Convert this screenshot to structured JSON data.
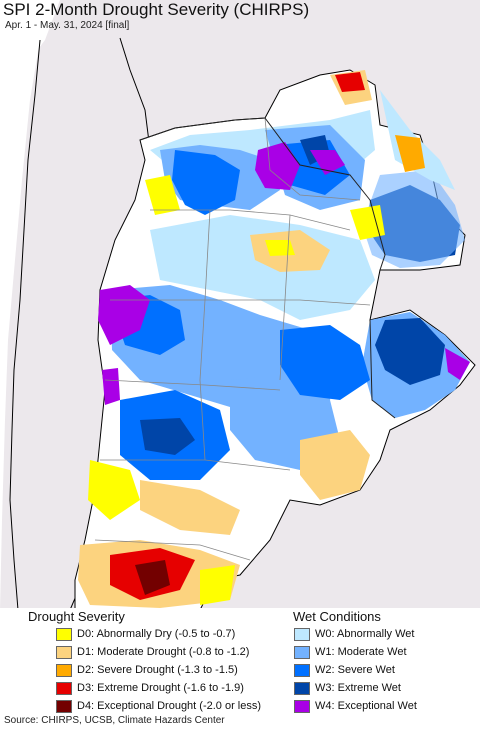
{
  "title": "SPI 2-Month Drought Severity (CHIRPS)",
  "subtitle": "Apr. 1 - May. 31, 2024 [final]",
  "legend": {
    "drought_heading": "Drought Severity",
    "wet_heading": "Wet Conditions",
    "drought_items": [
      {
        "label": "D0: Abnormally Dry (-0.5 to -0.7)",
        "color": "#ffff00"
      },
      {
        "label": "D1: Moderate Drought (-0.8 to -1.2)",
        "color": "#fcd37f"
      },
      {
        "label": "D2: Severe Drought (-1.3 to -1.5)",
        "color": "#ffaa00"
      },
      {
        "label": "D3: Extreme Drought (-1.6 to -1.9)",
        "color": "#e60000"
      },
      {
        "label": "D4: Exceptional Drought (-2.0 or less)",
        "color": "#730000"
      }
    ],
    "wet_items": [
      {
        "label": "W0: Abnormally Wet",
        "color": "#bee8ff"
      },
      {
        "label": "W1: Moderate Wet",
        "color": "#73b2ff"
      },
      {
        "label": "W2: Severe Wet",
        "color": "#0070ff"
      },
      {
        "label": "W3: Extreme Wet",
        "color": "#0045a8"
      },
      {
        "label": "W4: Exceptional Wet",
        "color": "#a900e6"
      }
    ]
  },
  "source": "Source: CHIRPS, UCSB, Climate Hazards Center",
  "colors": {
    "ocean": "#ffffff",
    "outside_land": "#ece8ec",
    "land": "#ffffff",
    "border": "#000000"
  }
}
